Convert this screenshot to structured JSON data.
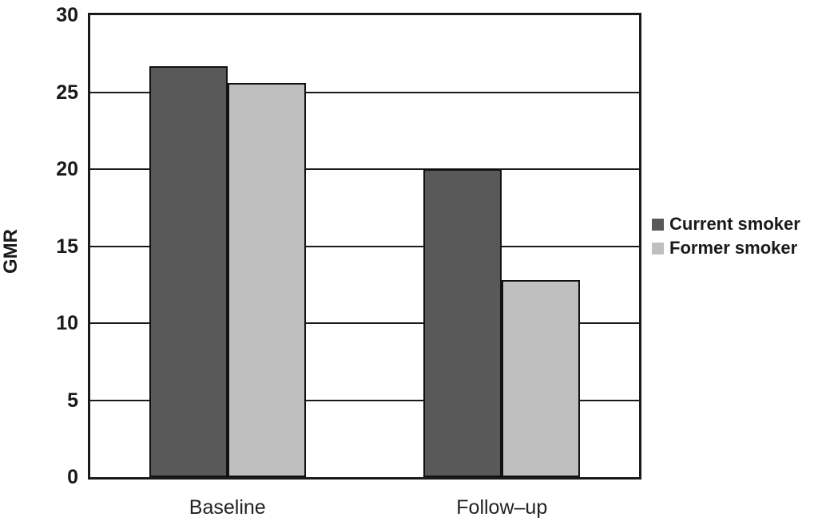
{
  "chart_data": {
    "type": "bar",
    "categories": [
      "Baseline",
      "Follow–up"
    ],
    "series": [
      {
        "name": "Current smoker",
        "color": "#595959",
        "values": [
          26.7,
          20.0
        ]
      },
      {
        "name": "Former smoker",
        "color": "#bfbfbf",
        "values": [
          25.6,
          12.8
        ]
      }
    ],
    "title": "",
    "xlabel": "",
    "ylabel": "GMR",
    "ylim": [
      0,
      30
    ],
    "yticks": [
      0,
      5,
      10,
      15,
      20,
      25,
      30
    ],
    "grid": true,
    "legend_position": "right"
  },
  "colors": {
    "axis": "#1a1a1a",
    "bar_outline": "#111111",
    "background": "#ffffff",
    "text": "#1a1a1a"
  }
}
